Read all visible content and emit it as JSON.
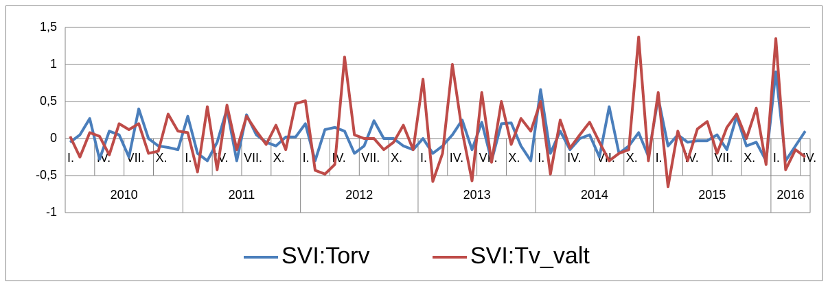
{
  "chart_data": {
    "type": "line",
    "categories": [
      "I.",
      null,
      null,
      "IV.",
      null,
      null,
      "VII.",
      null,
      null,
      "X.",
      null,
      null,
      "I.",
      null,
      null,
      "IV.",
      null,
      null,
      "VII.",
      null,
      null,
      "X.",
      null,
      null,
      "I.",
      null,
      null,
      "IV.",
      null,
      null,
      "VII.",
      null,
      null,
      "X.",
      null,
      null,
      "I.",
      null,
      null,
      "IV.",
      null,
      null,
      "VII.",
      null,
      null,
      "X.",
      null,
      null,
      "I.",
      null,
      null,
      "IV.",
      null,
      null,
      "VII.",
      null,
      null,
      "X.",
      null,
      null,
      "I.",
      null,
      null,
      "IV.",
      null,
      null,
      "VII.",
      null,
      null,
      "X.",
      null,
      null,
      "I.",
      null,
      null,
      "IV."
    ],
    "years": [
      "2010",
      "2011",
      "2012",
      "2013",
      "2014",
      "2015",
      "2016"
    ],
    "series": [
      {
        "name": "SVI:Torv",
        "color": "#4a7ebb",
        "values": [
          -0.05,
          0.05,
          0.27,
          -0.28,
          0.1,
          0.05,
          -0.25,
          0.4,
          0.0,
          -0.1,
          -0.12,
          -0.15,
          0.3,
          -0.2,
          -0.3,
          -0.05,
          0.4,
          -0.3,
          0.32,
          0.05,
          -0.05,
          -0.1,
          0.02,
          0.02,
          0.2,
          -0.3,
          0.12,
          0.15,
          0.1,
          -0.2,
          -0.1,
          0.24,
          0.0,
          0.0,
          -0.1,
          -0.15,
          0.0,
          -0.2,
          -0.1,
          0.05,
          0.25,
          -0.15,
          0.22,
          -0.3,
          0.2,
          0.21,
          -0.1,
          -0.3,
          0.66,
          -0.2,
          0.1,
          -0.15,
          0.0,
          0.05,
          -0.25,
          0.43,
          -0.2,
          -0.1,
          0.08,
          -0.24,
          0.55,
          -0.1,
          0.05,
          -0.05,
          -0.03,
          -0.03,
          0.05,
          -0.15,
          0.3,
          -0.1,
          -0.05,
          -0.3,
          0.9,
          -0.3,
          -0.1,
          0.1
        ]
      },
      {
        "name": "SVI:Tv_valt",
        "color": "#be4b48",
        "values": [
          0.03,
          -0.25,
          0.08,
          0.03,
          -0.22,
          0.2,
          0.12,
          0.2,
          -0.2,
          -0.17,
          0.33,
          0.1,
          0.08,
          -0.45,
          0.43,
          -0.42,
          0.45,
          -0.15,
          0.3,
          0.1,
          -0.08,
          0.18,
          -0.15,
          0.47,
          0.51,
          -0.43,
          -0.48,
          -0.35,
          1.1,
          0.05,
          0.0,
          0.0,
          -0.15,
          -0.05,
          0.18,
          -0.15,
          0.8,
          -0.58,
          -0.2,
          1.0,
          0.1,
          -0.57,
          0.62,
          -0.32,
          0.5,
          -0.08,
          0.27,
          0.1,
          0.5,
          -0.48,
          0.25,
          -0.13,
          0.05,
          0.22,
          -0.05,
          -0.3,
          -0.2,
          -0.15,
          1.37,
          -0.3,
          0.62,
          -0.65,
          0.1,
          -0.3,
          0.13,
          0.23,
          -0.2,
          0.15,
          0.33,
          0.0,
          0.41,
          -0.35,
          1.35,
          -0.42,
          -0.15,
          -0.25
        ]
      }
    ],
    "ylim": [
      -1,
      1.5
    ],
    "yticks": [
      -1,
      {
        "value": -0.5,
        "label": "-0,5"
      },
      0,
      {
        "value": 0.5,
        "label": "0,5"
      },
      1,
      {
        "value": 1.5,
        "label": "1,5"
      }
    ],
    "grid": true,
    "legend": "bottom"
  }
}
